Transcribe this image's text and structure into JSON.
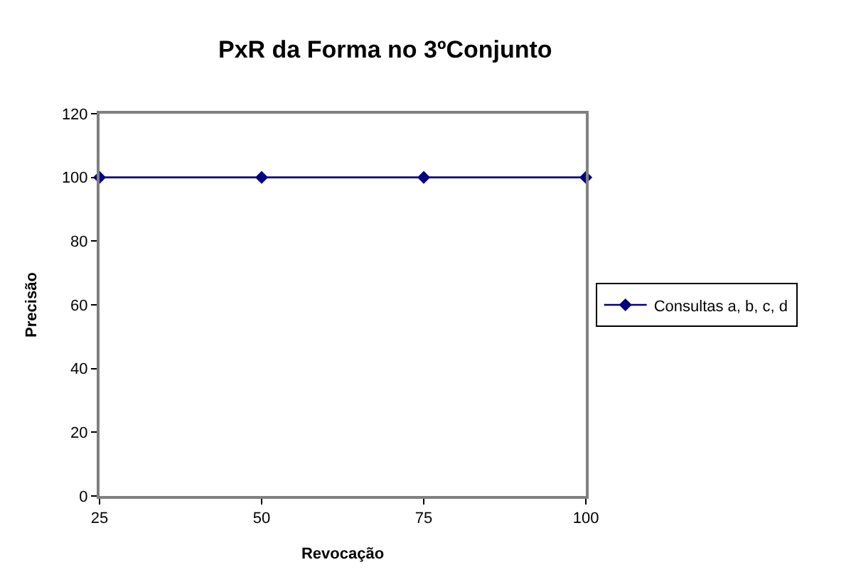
{
  "chart_data": {
    "type": "line",
    "title": "PxR da Forma no 3ºConjunto",
    "xlabel": "Revocação",
    "ylabel": "Precisão",
    "x": [
      25,
      50,
      75,
      100
    ],
    "series": [
      {
        "name": "Consultas a, b, c, d",
        "color": "#000080",
        "values": [
          100,
          100,
          100,
          100
        ]
      }
    ],
    "xlim": [
      25,
      100
    ],
    "xticks": [
      25,
      50,
      75,
      100
    ],
    "ylim": [
      0,
      120
    ],
    "yticks": [
      0,
      20,
      40,
      60,
      80,
      100,
      120
    ],
    "legend": "right",
    "marker": "diamond",
    "line_style": "solid"
  }
}
